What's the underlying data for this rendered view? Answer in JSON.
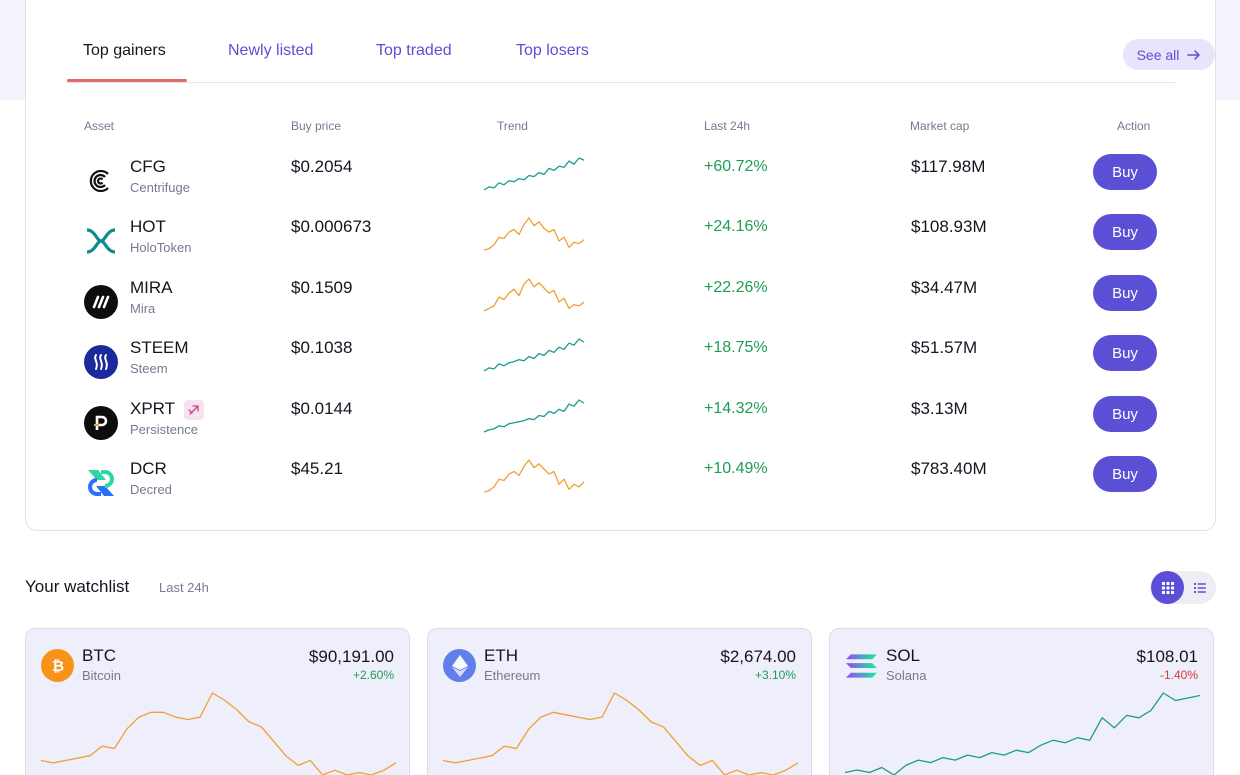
{
  "tabs": [
    {
      "label": "Top gainers",
      "active": true
    },
    {
      "label": "Newly listed",
      "active": false
    },
    {
      "label": "Top traded",
      "active": false
    },
    {
      "label": "Top losers",
      "active": false
    }
  ],
  "see_all_label": "See all",
  "columns": {
    "asset": "Asset",
    "buy_price": "Buy price",
    "trend": "Trend",
    "last_24h": "Last 24h",
    "market_cap": "Market cap",
    "action": "Action"
  },
  "assets": [
    {
      "symbol": "CFG",
      "name": "Centrifuge",
      "price": "$0.2054",
      "change": "+60.72%",
      "market_cap": "$117.98M",
      "action": "Buy",
      "trend_color": "#1a9c8c",
      "icon": "centrifuge-icon",
      "trend": [
        5,
        8,
        7,
        12,
        10,
        14,
        13,
        16,
        15,
        19,
        18,
        22,
        20,
        26,
        24,
        28,
        27,
        33,
        30,
        36,
        34
      ]
    },
    {
      "symbol": "HOT",
      "name": "HoloToken",
      "price": "$0.000673",
      "change": "+24.16%",
      "market_cap": "$108.93M",
      "action": "Buy",
      "trend_color": "#f0a030",
      "icon": "holo-icon",
      "trend": [
        8,
        9,
        12,
        18,
        17,
        22,
        24,
        20,
        28,
        33,
        27,
        30,
        25,
        22,
        24,
        15,
        18,
        10,
        14,
        13,
        16
      ]
    },
    {
      "symbol": "MIRA",
      "name": "Mira",
      "price": "$0.1509",
      "change": "+22.26%",
      "market_cap": "$34.47M",
      "action": "Buy",
      "trend_color": "#f0a030",
      "icon": "mira-icon",
      "trend": [
        8,
        10,
        12,
        19,
        17,
        22,
        25,
        20,
        29,
        33,
        27,
        30,
        26,
        22,
        24,
        15,
        18,
        10,
        13,
        12,
        15
      ]
    },
    {
      "symbol": "STEEM",
      "name": "Steem",
      "price": "$0.1038",
      "change": "+18.75%",
      "market_cap": "$51.57M",
      "action": "Buy",
      "trend_color": "#1a9c8c",
      "icon": "steem-icon",
      "trend": [
        5,
        8,
        7,
        12,
        10,
        13,
        14,
        16,
        15,
        19,
        17,
        22,
        20,
        25,
        23,
        28,
        26,
        32,
        30,
        36,
        33
      ]
    },
    {
      "symbol": "XPRT",
      "name": "Persistence",
      "price": "$0.0144",
      "change": "+14.32%",
      "market_cap": "$3.13M",
      "action": "Buy",
      "trend_color": "#1a9c8c",
      "icon": "persistence-icon",
      "badge": "link-badge-icon",
      "trend": [
        5,
        7,
        8,
        11,
        10,
        13,
        14,
        15,
        16,
        18,
        17,
        21,
        20,
        25,
        23,
        27,
        25,
        32,
        30,
        36,
        33
      ]
    },
    {
      "symbol": "DCR",
      "name": "Decred",
      "price": "$45.21",
      "change": "+10.49%",
      "market_cap": "$783.40M",
      "action": "Buy",
      "trend_color": "#f0a030",
      "icon": "decred-icon",
      "trend": [
        8,
        9,
        12,
        18,
        17,
        22,
        24,
        21,
        28,
        33,
        27,
        30,
        26,
        22,
        24,
        14,
        18,
        10,
        14,
        12,
        16
      ]
    }
  ],
  "watchlist": {
    "title": "Your watchlist",
    "subtitle": "Last 24h",
    "cards": [
      {
        "symbol": "BTC",
        "name": "Bitcoin",
        "price": "$90,191.00",
        "change": "+2.60%",
        "positive": true,
        "line_color": "#f0a030",
        "icon": "bitcoin-icon",
        "trend": [
          12,
          11,
          12,
          13,
          14,
          18,
          17,
          25,
          30,
          32,
          32,
          30,
          29,
          30,
          40,
          37,
          33,
          28,
          26,
          20,
          14,
          10,
          12,
          6,
          8,
          6,
          7,
          6,
          8,
          11
        ]
      },
      {
        "symbol": "ETH",
        "name": "Ethereum",
        "price": "$2,674.00",
        "change": "+3.10%",
        "positive": true,
        "line_color": "#f0a030",
        "icon": "ethereum-icon",
        "trend": [
          12,
          11,
          12,
          13,
          14,
          18,
          17,
          25,
          30,
          32,
          31,
          30,
          29,
          30,
          40,
          37,
          33,
          28,
          26,
          20,
          14,
          10,
          12,
          6,
          8,
          6,
          7,
          6,
          8,
          11
        ]
      },
      {
        "symbol": "SOL",
        "name": "Solana",
        "price": "$108.01",
        "change": "-1.40%",
        "positive": false,
        "line_color": "#1a9c8c",
        "icon": "solana-icon",
        "trend": [
          6,
          7,
          6,
          8,
          5,
          9,
          11,
          10,
          12,
          11,
          13,
          12,
          14,
          13,
          15,
          14,
          17,
          19,
          18,
          20,
          19,
          28,
          24,
          29,
          28,
          31,
          38,
          35,
          36,
          37
        ]
      }
    ]
  },
  "colors": {
    "accent": "#5b4fd6",
    "positive": "#1f9d55",
    "negative": "#d23b3b",
    "tab_underline": "#e46a6a"
  }
}
